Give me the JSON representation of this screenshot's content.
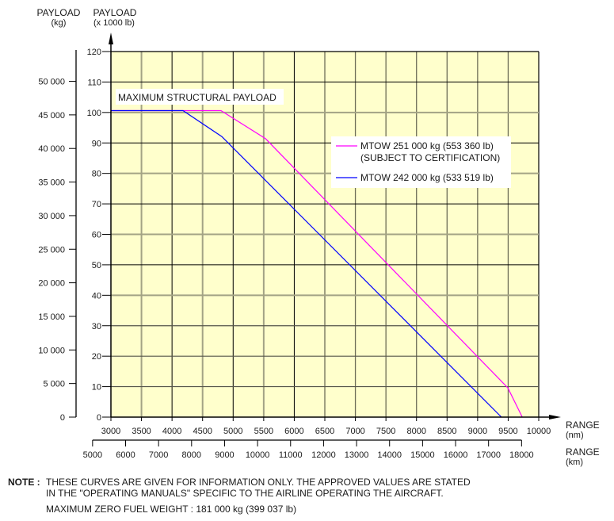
{
  "chart_data": {
    "type": "line",
    "title": "",
    "y_axis_left_label": [
      "PAYLOAD",
      "(kg)"
    ],
    "y_axis_right_label": [
      "PAYLOAD",
      "(x 1000 lb)"
    ],
    "xlabel_nm": [
      "RANGE",
      "(nm)"
    ],
    "xlabel_km": [
      "RANGE",
      "(km)"
    ],
    "xlim_nm": [
      3000,
      10000
    ],
    "ylim_klb": [
      0,
      120
    ],
    "x_ticks_nm": [
      3000,
      3500,
      4000,
      4500,
      5000,
      5500,
      6000,
      6500,
      7000,
      7500,
      8000,
      8500,
      9000,
      9500,
      10000
    ],
    "y_ticks_klb": [
      0,
      10,
      20,
      30,
      40,
      50,
      60,
      70,
      80,
      90,
      100,
      110,
      120
    ],
    "y_ticks_kg": [
      0,
      5000,
      10000,
      15000,
      20000,
      25000,
      30000,
      35000,
      40000,
      45000,
      50000
    ],
    "y_tick_labels_kg": [
      "0",
      "5 000",
      "10 000",
      "15 000",
      "20 000",
      "25 000",
      "30 000",
      "35 000",
      "40 000",
      "45 000",
      "50 000"
    ],
    "x_ticks_km": [
      5000,
      6000,
      7000,
      8000,
      9000,
      10000,
      11000,
      12000,
      13000,
      14000,
      15000,
      16000,
      17000,
      18000
    ],
    "grid": true,
    "annotation": "MAXIMUM STRUCTURAL PAYLOAD",
    "legend_position": "right-center",
    "series": [
      {
        "name": "MTOW 251 000 kg (553 360 lb)",
        "name_line2": "(SUBJECT TO CERTIFICATION)",
        "color": "#ff00ff",
        "x": [
          3000,
          4800,
          5530,
          9495,
          9730
        ],
        "y": [
          100.6,
          100.6,
          91.4,
          9.6,
          0
        ]
      },
      {
        "name": "MTOW 242 000 kg (533 519 lb)",
        "color": "#0000ff",
        "x": [
          3000,
          4180,
          4815,
          9390
        ],
        "y": [
          100.6,
          100.6,
          92.1,
          0
        ]
      }
    ]
  },
  "note": {
    "label": "NOTE :",
    "lines": [
      "THESE CURVES ARE GIVEN FOR INFORMATION ONLY. THE APPROVED VALUES ARE STATED",
      "IN THE \"OPERATING MANUALS\" SPECIFIC TO THE AIRLINE OPERATING THE AIRCRAFT."
    ],
    "mzfw": "MAXIMUM ZERO FUEL WEIGHT : 181 000 kg (399 037 lb)"
  },
  "colors": {
    "plot_bg": "#ffffcc",
    "grid_major": "#000000",
    "grid_minor": "#a3a385"
  }
}
